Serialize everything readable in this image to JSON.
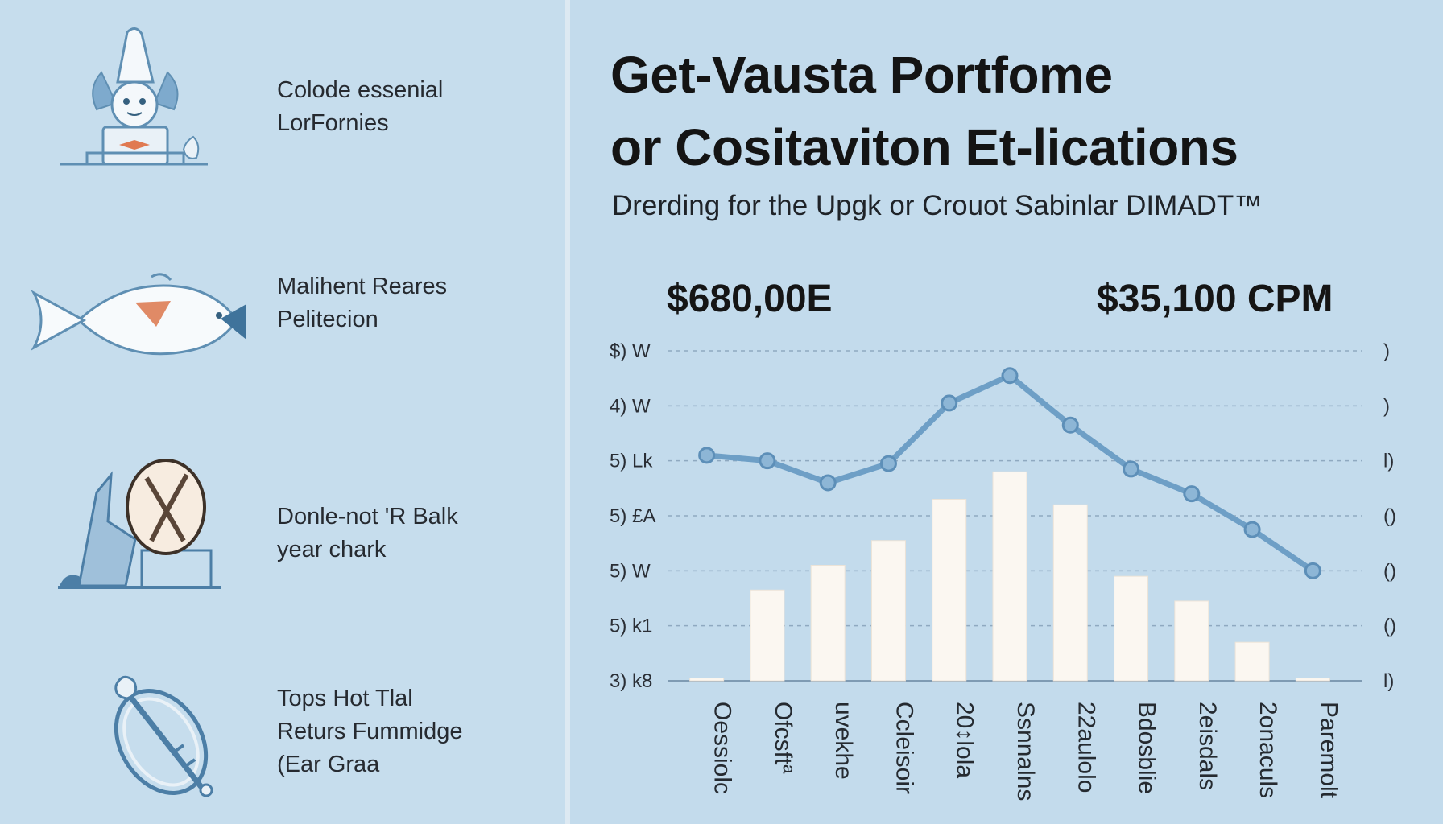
{
  "features": [
    {
      "icon": "gnome-figure-icon",
      "lines": [
        "Colode essenial",
        "LorFornies"
      ]
    },
    {
      "icon": "fish-icon",
      "lines": [
        "Malihent Reares",
        "Pelitecion"
      ]
    },
    {
      "icon": "balk-sign-icon",
      "lines": [
        "Donle-not 'R Balk",
        "year chark"
      ]
    },
    {
      "icon": "ring-key-icon",
      "lines": [
        "Tops Hot Tlal",
        "Returs Fummidge",
        "(Ear Graa"
      ]
    }
  ],
  "header": {
    "title_line1": "Get-Vausta Portfome",
    "title_line2": "or Cositaviton Et-lications",
    "subtitle": "Drerding for the Upgk or Crouot Sabinlar DIMADT™"
  },
  "highlights": {
    "left_value": "$680,00E",
    "right_value": "$35,100 CPM"
  },
  "chart_data": {
    "type": "bar",
    "categories": [
      "Oessiolc",
      "Ofcsftª",
      "uvekhe",
      "Ccleisoir",
      "20↕lola",
      "Ssnnalns",
      "22aulolo",
      "Bdosblie",
      "2eisdals",
      "2onaculs",
      "Paremolt"
    ],
    "y_tick_labels_left": [
      "$) W",
      "4) W",
      "5) Lk",
      "5) £A",
      "5) W",
      "5) k1",
      "3) k8"
    ],
    "y_tick_labels_right": [
      ")",
      ")",
      "l)",
      "()",
      "()",
      "()",
      "l)"
    ],
    "ylim": [
      0,
      6
    ],
    "grid": true,
    "series": [
      {
        "values": [
          0.05,
          1.65,
          2.1,
          2.55,
          3.3,
          3.8,
          3.2,
          1.9,
          1.45,
          0.7,
          0.05
        ]
      },
      {
        "type": "line",
        "values": [
          4.1,
          4.0,
          3.6,
          3.95,
          5.05,
          5.55,
          4.65,
          3.85,
          3.4,
          2.75,
          2.0
        ]
      }
    ],
    "colors": {
      "bar": "#fbf7f1",
      "line": "#6e9fc6",
      "grid": "#8fa9c0"
    }
  }
}
